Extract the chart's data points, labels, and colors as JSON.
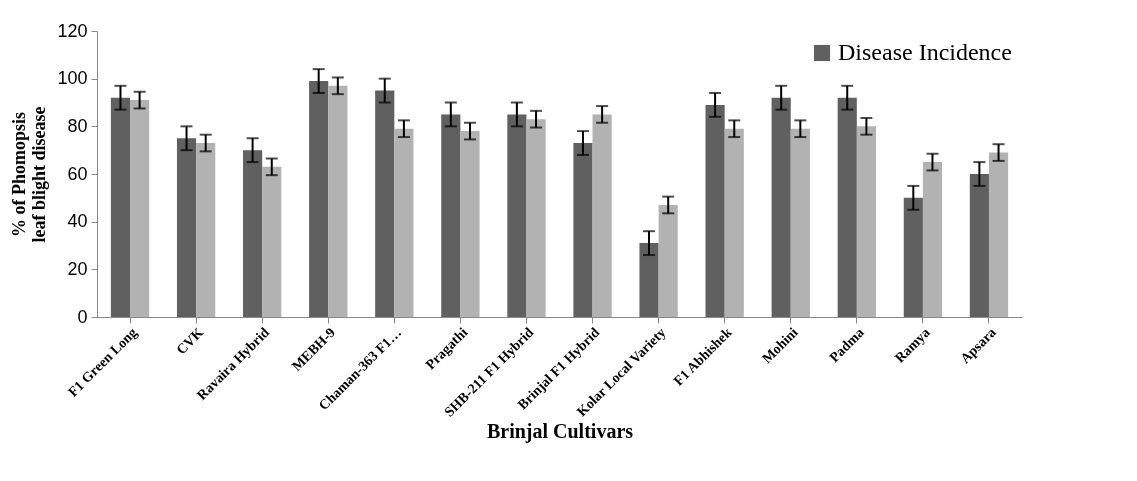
{
  "chart_data": {
    "type": "bar",
    "xlabel": "Brinjal Cultivars",
    "ylabel": "% of Phomopsis leaf blight disease",
    "categories": [
      "F1 Green Long",
      "CVK",
      "Ravaira Hybrid",
      "MEBH-9",
      "Chaman-363 F1…",
      "Pragathi",
      "SHB-211 F1 Hybrid",
      "Brinjal F1 Hybrid",
      "Kolar Local Variety",
      "F1 Abhishek",
      "Mohini",
      "Padma",
      "Ramya",
      "Apsara"
    ],
    "series": [
      {
        "name": "Disease Incidence",
        "color": "#606060",
        "values": [
          92,
          75,
          70,
          99,
          95,
          85,
          85,
          73,
          31,
          89,
          92,
          92,
          50,
          60
        ],
        "errors": [
          5,
          5,
          5,
          5,
          5,
          5,
          5,
          5,
          5,
          5,
          5,
          5,
          5,
          5
        ]
      },
      {
        "color": "#b2b2b2",
        "values": [
          91,
          73,
          63,
          97,
          79,
          78,
          83,
          85,
          47,
          79,
          79,
          80,
          65,
          69
        ],
        "errors": [
          3.5,
          3.5,
          3.5,
          3.5,
          3.5,
          3.5,
          3.5,
          3.5,
          3.5,
          3.5,
          3.5,
          3.5,
          3.5,
          3.5
        ]
      }
    ],
    "ylim": [
      0,
      120
    ],
    "yticks": [
      0,
      20,
      40,
      60,
      80,
      100,
      120
    ],
    "grid": false,
    "legend": "top right"
  }
}
